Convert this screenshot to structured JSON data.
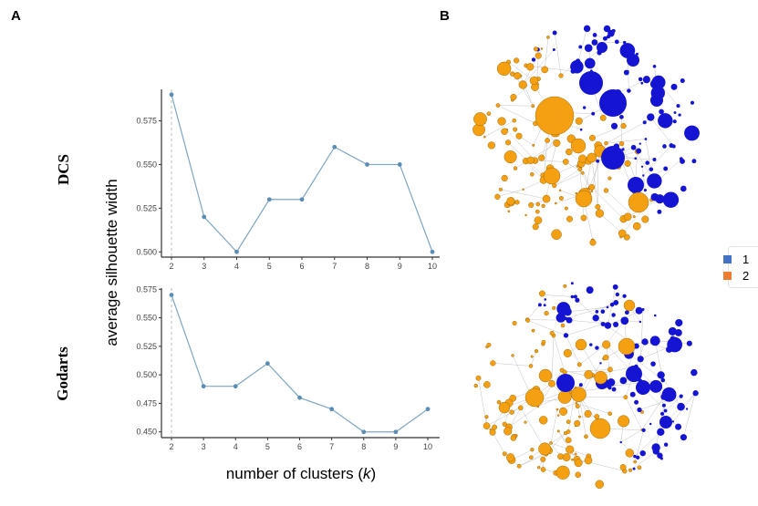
{
  "panels": {
    "a": "A",
    "b": "B"
  },
  "row_labels": {
    "dcs": "DCS",
    "godarts": "Godarts"
  },
  "axis_titles": {
    "y": "average silhouette width",
    "x_prefix": "number of clusters (",
    "x_var": "k",
    "x_suffix": ")"
  },
  "colors": {
    "line": "#7fa6c4",
    "point": "#5b8db5",
    "cluster1": "#1414d2",
    "cluster2": "#f5a010",
    "edge": "#b4b4b4"
  },
  "chart_data": [
    {
      "type": "line",
      "name": "DCS",
      "x": [
        2,
        3,
        4,
        5,
        6,
        7,
        8,
        9,
        10
      ],
      "y": [
        0.59,
        0.52,
        0.5,
        0.53,
        0.53,
        0.56,
        0.55,
        0.55,
        0.5
      ],
      "yticks": [
        "0.500",
        "0.525",
        "0.550",
        "0.575"
      ],
      "ylim": [
        0.497,
        0.593
      ],
      "xticks": [
        "2",
        "3",
        "4",
        "5",
        "6",
        "7",
        "8",
        "9",
        "10"
      ],
      "reference_line_x": 2
    },
    {
      "type": "line",
      "name": "Godarts",
      "x": [
        2,
        3,
        4,
        5,
        6,
        7,
        8,
        9,
        10
      ],
      "y": [
        0.57,
        0.49,
        0.49,
        0.51,
        0.48,
        0.47,
        0.45,
        0.45,
        0.47
      ],
      "yticks": [
        "0.450",
        "0.475",
        "0.500",
        "0.525",
        "0.550",
        "0.575"
      ],
      "ylim": [
        0.445,
        0.576
      ],
      "xticks": [
        "2",
        "3",
        "4",
        "5",
        "6",
        "7",
        "8",
        "9",
        "10"
      ],
      "reference_line_x": 2
    }
  ],
  "legend": [
    {
      "label": "1",
      "color": "#4472c4"
    },
    {
      "label": "2",
      "color": "#ed7d31"
    }
  ]
}
